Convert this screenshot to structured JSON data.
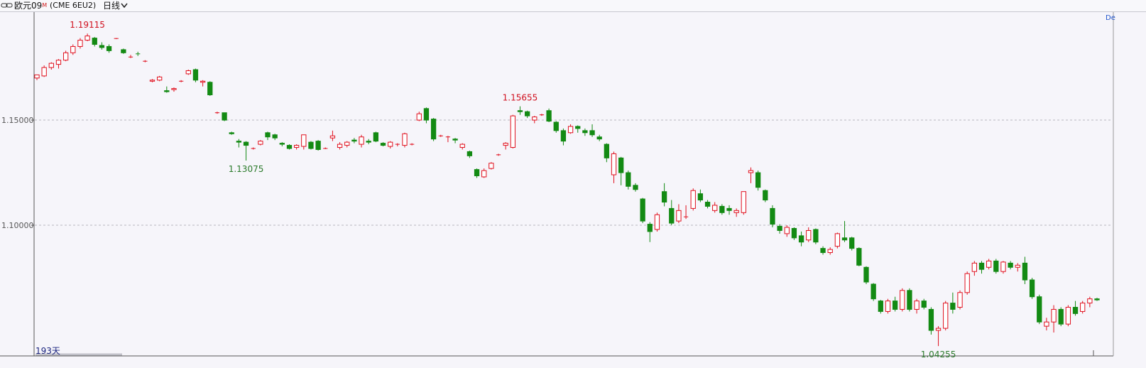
{
  "header": {
    "title": "欧元09",
    "title_sup": "M",
    "symbol": "(CME 6EU2)",
    "period": "日线"
  },
  "chart_data": {
    "type": "candlestick",
    "ylim": [
      1.0382,
      1.2017
    ],
    "yticks": [
      {
        "value": 1.15,
        "label": "1.15000"
      },
      {
        "value": 1.1,
        "label": "1.10000"
      }
    ],
    "grid": true,
    "up_color": "#e0101e",
    "down_color": "#138a13",
    "footer": "193天",
    "corner_text": "De",
    "annotations": [
      {
        "label": "1.19115",
        "value": 1.19115
      },
      {
        "label": "1.13075",
        "value": 1.13075
      },
      {
        "label": "1.15655",
        "value": 1.15655
      },
      {
        "label": "1.04255",
        "value": 1.04255
      }
    ],
    "ohlc": [
      [
        1.17,
        1.1715,
        1.169,
        1.1715
      ],
      [
        1.171,
        1.176,
        1.1705,
        1.175
      ],
      [
        1.175,
        1.1775,
        1.174,
        1.177
      ],
      [
        1.1765,
        1.179,
        1.1745,
        1.1785
      ],
      [
        1.1785,
        1.183,
        1.178,
        1.182
      ],
      [
        1.182,
        1.186,
        1.181,
        1.185
      ],
      [
        1.185,
        1.189,
        1.184,
        1.188
      ],
      [
        1.188,
        1.19115,
        1.1875,
        1.19
      ],
      [
        1.189,
        1.1895,
        1.185,
        1.186
      ],
      [
        1.1855,
        1.187,
        1.1835,
        1.1845
      ],
      [
        1.185,
        1.186,
        1.182,
        1.183
      ],
      [
        1.1888,
        1.189,
        1.1885,
        1.1888
      ],
      [
        1.1835,
        1.184,
        1.1815,
        1.182
      ],
      [
        1.18,
        1.181,
        1.1795,
        1.18
      ],
      [
        1.1815,
        1.1825,
        1.1805,
        1.1812
      ],
      [
        1.178,
        1.1785,
        1.1775,
        1.178
      ],
      [
        1.1685,
        1.1695,
        1.168,
        1.169
      ],
      [
        1.169,
        1.171,
        1.1685,
        1.1705
      ],
      [
        1.164,
        1.166,
        1.163,
        1.1635
      ],
      [
        1.1645,
        1.1655,
        1.1635,
        1.165
      ],
      [
        1.1685,
        1.169,
        1.168,
        1.1685
      ],
      [
        1.172,
        1.174,
        1.1715,
        1.1735
      ],
      [
        1.174,
        1.1745,
        1.168,
        1.169
      ],
      [
        1.168,
        1.169,
        1.166,
        1.1685
      ],
      [
        1.168,
        1.1685,
        1.1615,
        1.162
      ],
      [
        1.1535,
        1.154,
        1.153,
        1.1535
      ],
      [
        1.1535,
        1.1535,
        1.1495,
        1.15
      ],
      [
        1.144,
        1.1445,
        1.143,
        1.1435
      ],
      [
        1.14,
        1.141,
        1.137,
        1.1395
      ],
      [
        1.1395,
        1.14,
        1.13075,
        1.138
      ],
      [
        1.1365,
        1.137,
        1.136,
        1.1365
      ],
      [
        1.1385,
        1.1405,
        1.138,
        1.14
      ],
      [
        1.144,
        1.1445,
        1.1405,
        1.142
      ],
      [
        1.143,
        1.1435,
        1.1405,
        1.1415
      ],
      [
        1.139,
        1.1395,
        1.1375,
        1.1385
      ],
      [
        1.138,
        1.1385,
        1.136,
        1.1365
      ],
      [
        1.137,
        1.1385,
        1.136,
        1.138
      ],
      [
        1.1375,
        1.143,
        1.136,
        1.143
      ],
      [
        1.1395,
        1.14,
        1.136,
        1.1365
      ],
      [
        1.14,
        1.1405,
        1.1355,
        1.136
      ],
      [
        1.1365,
        1.137,
        1.1362,
        1.1365
      ],
      [
        1.1415,
        1.145,
        1.14,
        1.1425
      ],
      [
        1.137,
        1.1395,
        1.136,
        1.1385
      ],
      [
        1.138,
        1.14,
        1.137,
        1.1395
      ],
      [
        1.1405,
        1.1415,
        1.139,
        1.14
      ],
      [
        1.1385,
        1.143,
        1.137,
        1.142
      ],
      [
        1.14,
        1.141,
        1.1385,
        1.1395
      ],
      [
        1.144,
        1.1445,
        1.1395,
        1.14
      ],
      [
        1.139,
        1.1395,
        1.1375,
        1.138
      ],
      [
        1.1375,
        1.14,
        1.1365,
        1.1395
      ],
      [
        1.1385,
        1.139,
        1.1375,
        1.1385
      ],
      [
        1.138,
        1.144,
        1.137,
        1.1435
      ],
      [
        1.1385,
        1.139,
        1.138,
        1.1385
      ],
      [
        1.15,
        1.154,
        1.1495,
        1.153
      ],
      [
        1.1555,
        1.156,
        1.1485,
        1.15
      ],
      [
        1.1505,
        1.151,
        1.14,
        1.141
      ],
      [
        1.1425,
        1.143,
        1.142,
        1.1425
      ],
      [
        1.142,
        1.1425,
        1.1395,
        1.142
      ],
      [
        1.141,
        1.1415,
        1.139,
        1.1405
      ],
      [
        1.137,
        1.139,
        1.136,
        1.1385
      ],
      [
        1.135,
        1.1355,
        1.132,
        1.133
      ],
      [
        1.1265,
        1.127,
        1.1225,
        1.1235
      ],
      [
        1.123,
        1.127,
        1.1225,
        1.126
      ],
      [
        1.127,
        1.13,
        1.1265,
        1.1295
      ],
      [
        1.1335,
        1.134,
        1.133,
        1.1335
      ],
      [
        1.138,
        1.1395,
        1.136,
        1.139
      ],
      [
        1.137,
        1.1525,
        1.1365,
        1.152
      ],
      [
        1.1545,
        1.15655,
        1.1525,
        1.154
      ],
      [
        1.154,
        1.1545,
        1.151,
        1.152
      ],
      [
        1.15,
        1.152,
        1.1485,
        1.1515
      ],
      [
        1.1525,
        1.153,
        1.152,
        1.1525
      ],
      [
        1.1545,
        1.1555,
        1.149,
        1.1495
      ],
      [
        1.149,
        1.1495,
        1.144,
        1.145
      ],
      [
        1.145,
        1.146,
        1.138,
        1.14
      ],
      [
        1.144,
        1.148,
        1.1435,
        1.147
      ],
      [
        1.147,
        1.1475,
        1.144,
        1.146
      ],
      [
        1.145,
        1.146,
        1.1425,
        1.144
      ],
      [
        1.145,
        1.148,
        1.142,
        1.143
      ],
      [
        1.142,
        1.143,
        1.14,
        1.141
      ],
      [
        1.1385,
        1.139,
        1.13,
        1.132
      ],
      [
        1.124,
        1.135,
        1.12,
        1.134
      ],
      [
        1.132,
        1.1325,
        1.119,
        1.125
      ],
      [
        1.125,
        1.126,
        1.117,
        1.1185
      ],
      [
        1.119,
        1.12,
        1.116,
        1.117
      ],
      [
        1.1125,
        1.113,
        1.101,
        1.102
      ],
      [
        1.1005,
        1.1015,
        1.092,
        1.097
      ],
      [
        1.098,
        1.106,
        1.097,
        1.105
      ],
      [
        1.116,
        1.12,
        1.109,
        1.111
      ],
      [
        1.108,
        1.112,
        1.1,
        1.101
      ],
      [
        1.102,
        1.11,
        1.101,
        1.107
      ],
      [
        1.104,
        1.1095,
        1.103,
        1.104
      ],
      [
        1.108,
        1.1175,
        1.107,
        1.1165
      ],
      [
        1.115,
        1.117,
        1.111,
        1.112
      ],
      [
        1.111,
        1.112,
        1.108,
        1.109
      ],
      [
        1.107,
        1.111,
        1.106,
        1.1095
      ],
      [
        1.109,
        1.11,
        1.105,
        1.106
      ],
      [
        1.108,
        1.1095,
        1.105,
        1.107
      ],
      [
        1.106,
        1.108,
        1.104,
        1.107
      ],
      [
        1.106,
        1.116,
        1.105,
        1.116
      ],
      [
        1.125,
        1.1275,
        1.12,
        1.126
      ],
      [
        1.125,
        1.126,
        1.1165,
        1.118
      ],
      [
        1.1165,
        1.117,
        1.111,
        1.112
      ],
      [
        1.108,
        1.1095,
        1.099,
        1.1005
      ],
      [
        1.0995,
        1.1005,
        1.096,
        1.0975
      ],
      [
        1.096,
        1.1,
        1.0945,
        1.099
      ],
      [
        1.0985,
        1.099,
        1.093,
        1.094
      ],
      [
        1.095,
        1.097,
        1.09,
        1.092
      ],
      [
        1.093,
        1.099,
        1.092,
        1.0975
      ],
      [
        1.098,
        1.0985,
        1.091,
        1.092
      ],
      [
        1.089,
        1.09,
        1.086,
        1.087
      ],
      [
        1.087,
        1.0895,
        1.086,
        1.0885
      ],
      [
        1.09,
        1.0965,
        1.089,
        1.096
      ],
      [
        1.094,
        1.102,
        1.092,
        1.093
      ],
      [
        1.094,
        1.0945,
        1.088,
        1.089
      ],
      [
        1.089,
        1.0895,
        1.0805,
        1.081
      ],
      [
        1.08,
        1.0805,
        1.072,
        1.073
      ],
      [
        1.072,
        1.0725,
        1.064,
        1.065
      ],
      [
        1.064,
        1.0645,
        1.058,
        1.059
      ],
      [
        1.059,
        1.065,
        1.058,
        1.064
      ],
      [
        1.064,
        1.066,
        1.059,
        1.06
      ],
      [
        1.06,
        1.07,
        1.059,
        1.069
      ],
      [
        1.069,
        1.07,
        1.059,
        1.06
      ],
      [
        1.06,
        1.065,
        1.058,
        1.064
      ],
      [
        1.064,
        1.065,
        1.06,
        1.061
      ],
      [
        1.06,
        1.061,
        1.048,
        1.05
      ],
      [
        1.05,
        1.052,
        1.04255,
        1.051
      ],
      [
        1.051,
        1.064,
        1.05,
        1.063
      ],
      [
        1.063,
        1.068,
        1.058,
        1.06
      ],
      [
        1.061,
        1.069,
        1.06,
        1.068
      ],
      [
        1.068,
        1.078,
        1.067,
        1.077
      ],
      [
        1.078,
        1.083,
        1.076,
        1.082
      ],
      [
        1.082,
        1.083,
        1.077,
        1.079
      ],
      [
        1.08,
        1.084,
        1.079,
        1.083
      ],
      [
        1.083,
        1.084,
        1.077,
        1.078
      ],
      [
        1.078,
        1.083,
        1.077,
        1.0825
      ],
      [
        1.082,
        1.083,
        1.079,
        1.08
      ],
      [
        1.08,
        1.082,
        1.078,
        1.081
      ],
      [
        1.082,
        1.085,
        1.072,
        1.074
      ],
      [
        1.074,
        1.075,
        1.065,
        1.066
      ],
      [
        1.066,
        1.067,
        1.053,
        1.054
      ],
      [
        1.052,
        1.056,
        1.05,
        1.054
      ],
      [
        1.054,
        1.062,
        1.049,
        1.06
      ],
      [
        1.06,
        1.061,
        1.052,
        1.053
      ],
      [
        1.053,
        1.062,
        1.052,
        1.061
      ],
      [
        1.061,
        1.064,
        1.057,
        1.058
      ],
      [
        1.059,
        1.064,
        1.058,
        1.063
      ],
      [
        1.063,
        1.066,
        1.061,
        1.065
      ],
      [
        1.065,
        1.0655,
        1.064,
        1.0645
      ]
    ]
  }
}
